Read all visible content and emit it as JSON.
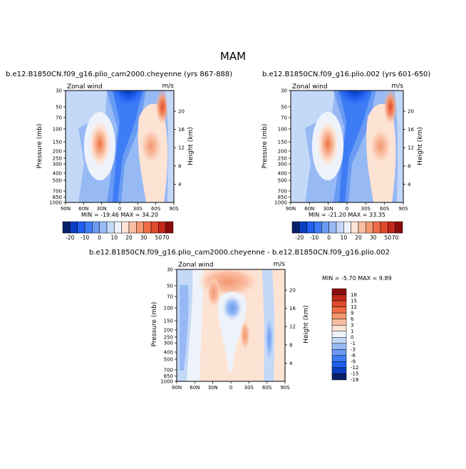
{
  "figure": {
    "season": "MAM"
  },
  "colors": {
    "full_levels": [
      "#08216b",
      "#0a3fc2",
      "#1f5ff2",
      "#3d7cf5",
      "#6a9bf4",
      "#97baf5",
      "#c4d8f7",
      "#eef3fb",
      "#fde3d4",
      "#f9bea2",
      "#f49770",
      "#ee6d47",
      "#e04a2c",
      "#c2271a",
      "#8a0b0b"
    ],
    "diff_levels": [
      "#08216b",
      "#0a3fc2",
      "#1f5ff2",
      "#3d7cf5",
      "#6a9bf4",
      "#97baf5",
      "#c4d8f7",
      "#eef3fb",
      "#fde3d4",
      "#f9bea2",
      "#f49770",
      "#ee6d47",
      "#e04a2c",
      "#c2271a",
      "#8a0b0b"
    ]
  },
  "chart_data": [
    {
      "type": "heatmap",
      "title": "b.e12.B1850CN.f09_g16.plio_cam2000.cheyenne (yrs 867-888)",
      "left_label": "Zonal wind",
      "right_label": "m/s",
      "xlabel": "",
      "ylabel": "Pressure (mb)",
      "ylabel_right": "Height (km)",
      "x_ticks": [
        "90N",
        "60N",
        "30N",
        "0",
        "30S",
        "60S",
        "90S"
      ],
      "y_ticks": [
        "30",
        "50",
        "70",
        "100",
        "150",
        "200",
        "250",
        "300",
        "400",
        "500",
        "700",
        "850",
        "1000"
      ],
      "right_ticks": [
        "4",
        "8",
        "12",
        "16",
        "20"
      ],
      "stats": "MIN = -19.46   MAX =  34.20",
      "colorbar_labels": [
        "-20",
        "-10",
        "0",
        "10",
        "20",
        "30",
        "50",
        "70"
      ],
      "features": [
        {
          "lat": 27,
          "p": 200,
          "u": 34.2
        },
        {
          "lat": -45,
          "p": 200,
          "u": 27
        },
        {
          "lat": 5,
          "p": 30,
          "u": -19.46
        }
      ]
    },
    {
      "type": "heatmap",
      "title": "b.e12.B1850CN.f09_g16.plio.002 (yrs 601-650)",
      "left_label": "Zonal wind",
      "right_label": "m/s",
      "xlabel": "",
      "ylabel": "Pressure (mb)",
      "ylabel_right": "Height (km)",
      "x_ticks": [
        "90N",
        "60N",
        "30N",
        "0",
        "30S",
        "60S",
        "90S"
      ],
      "y_ticks": [
        "30",
        "50",
        "70",
        "100",
        "150",
        "200",
        "250",
        "300",
        "400",
        "500",
        "700",
        "850",
        "1000"
      ],
      "right_ticks": [
        "4",
        "8",
        "12",
        "16",
        "20"
      ],
      "stats": "MIN = -21.20   MAX =  33.35",
      "colorbar_labels": [
        "-20",
        "-10",
        "0",
        "10",
        "20",
        "30",
        "50",
        "70"
      ],
      "features": [
        {
          "lat": 27,
          "p": 200,
          "u": 33.35
        },
        {
          "lat": -45,
          "p": 200,
          "u": 26
        },
        {
          "lat": 5,
          "p": 30,
          "u": -21.2
        }
      ]
    },
    {
      "type": "heatmap",
      "title": "b.e12.B1850CN.f09_g16.plio_cam2000.cheyenne - b.e12.B1850CN.f09_g16.plio.002",
      "left_label": "Zonal wind",
      "right_label": "m/s",
      "xlabel": "",
      "ylabel": "Pressure (mb)",
      "ylabel_right": "Height (km)",
      "x_ticks": [
        "90N",
        "60N",
        "30N",
        "0",
        "30S",
        "60S",
        "90S"
      ],
      "y_ticks": [
        "30",
        "50",
        "70",
        "100",
        "150",
        "200",
        "250",
        "300",
        "400",
        "500",
        "700",
        "850",
        "1000"
      ],
      "right_ticks": [
        "4",
        "8",
        "12",
        "16",
        "20"
      ],
      "stats": "MIN =   -5.70   MAX =    9.89",
      "colorbar_labels": [
        "18",
        "15",
        "12",
        "9",
        "6",
        "3",
        "1",
        "0",
        "-1",
        "-3",
        "-6",
        "-9",
        "-12",
        "-15",
        "-18"
      ]
    }
  ]
}
